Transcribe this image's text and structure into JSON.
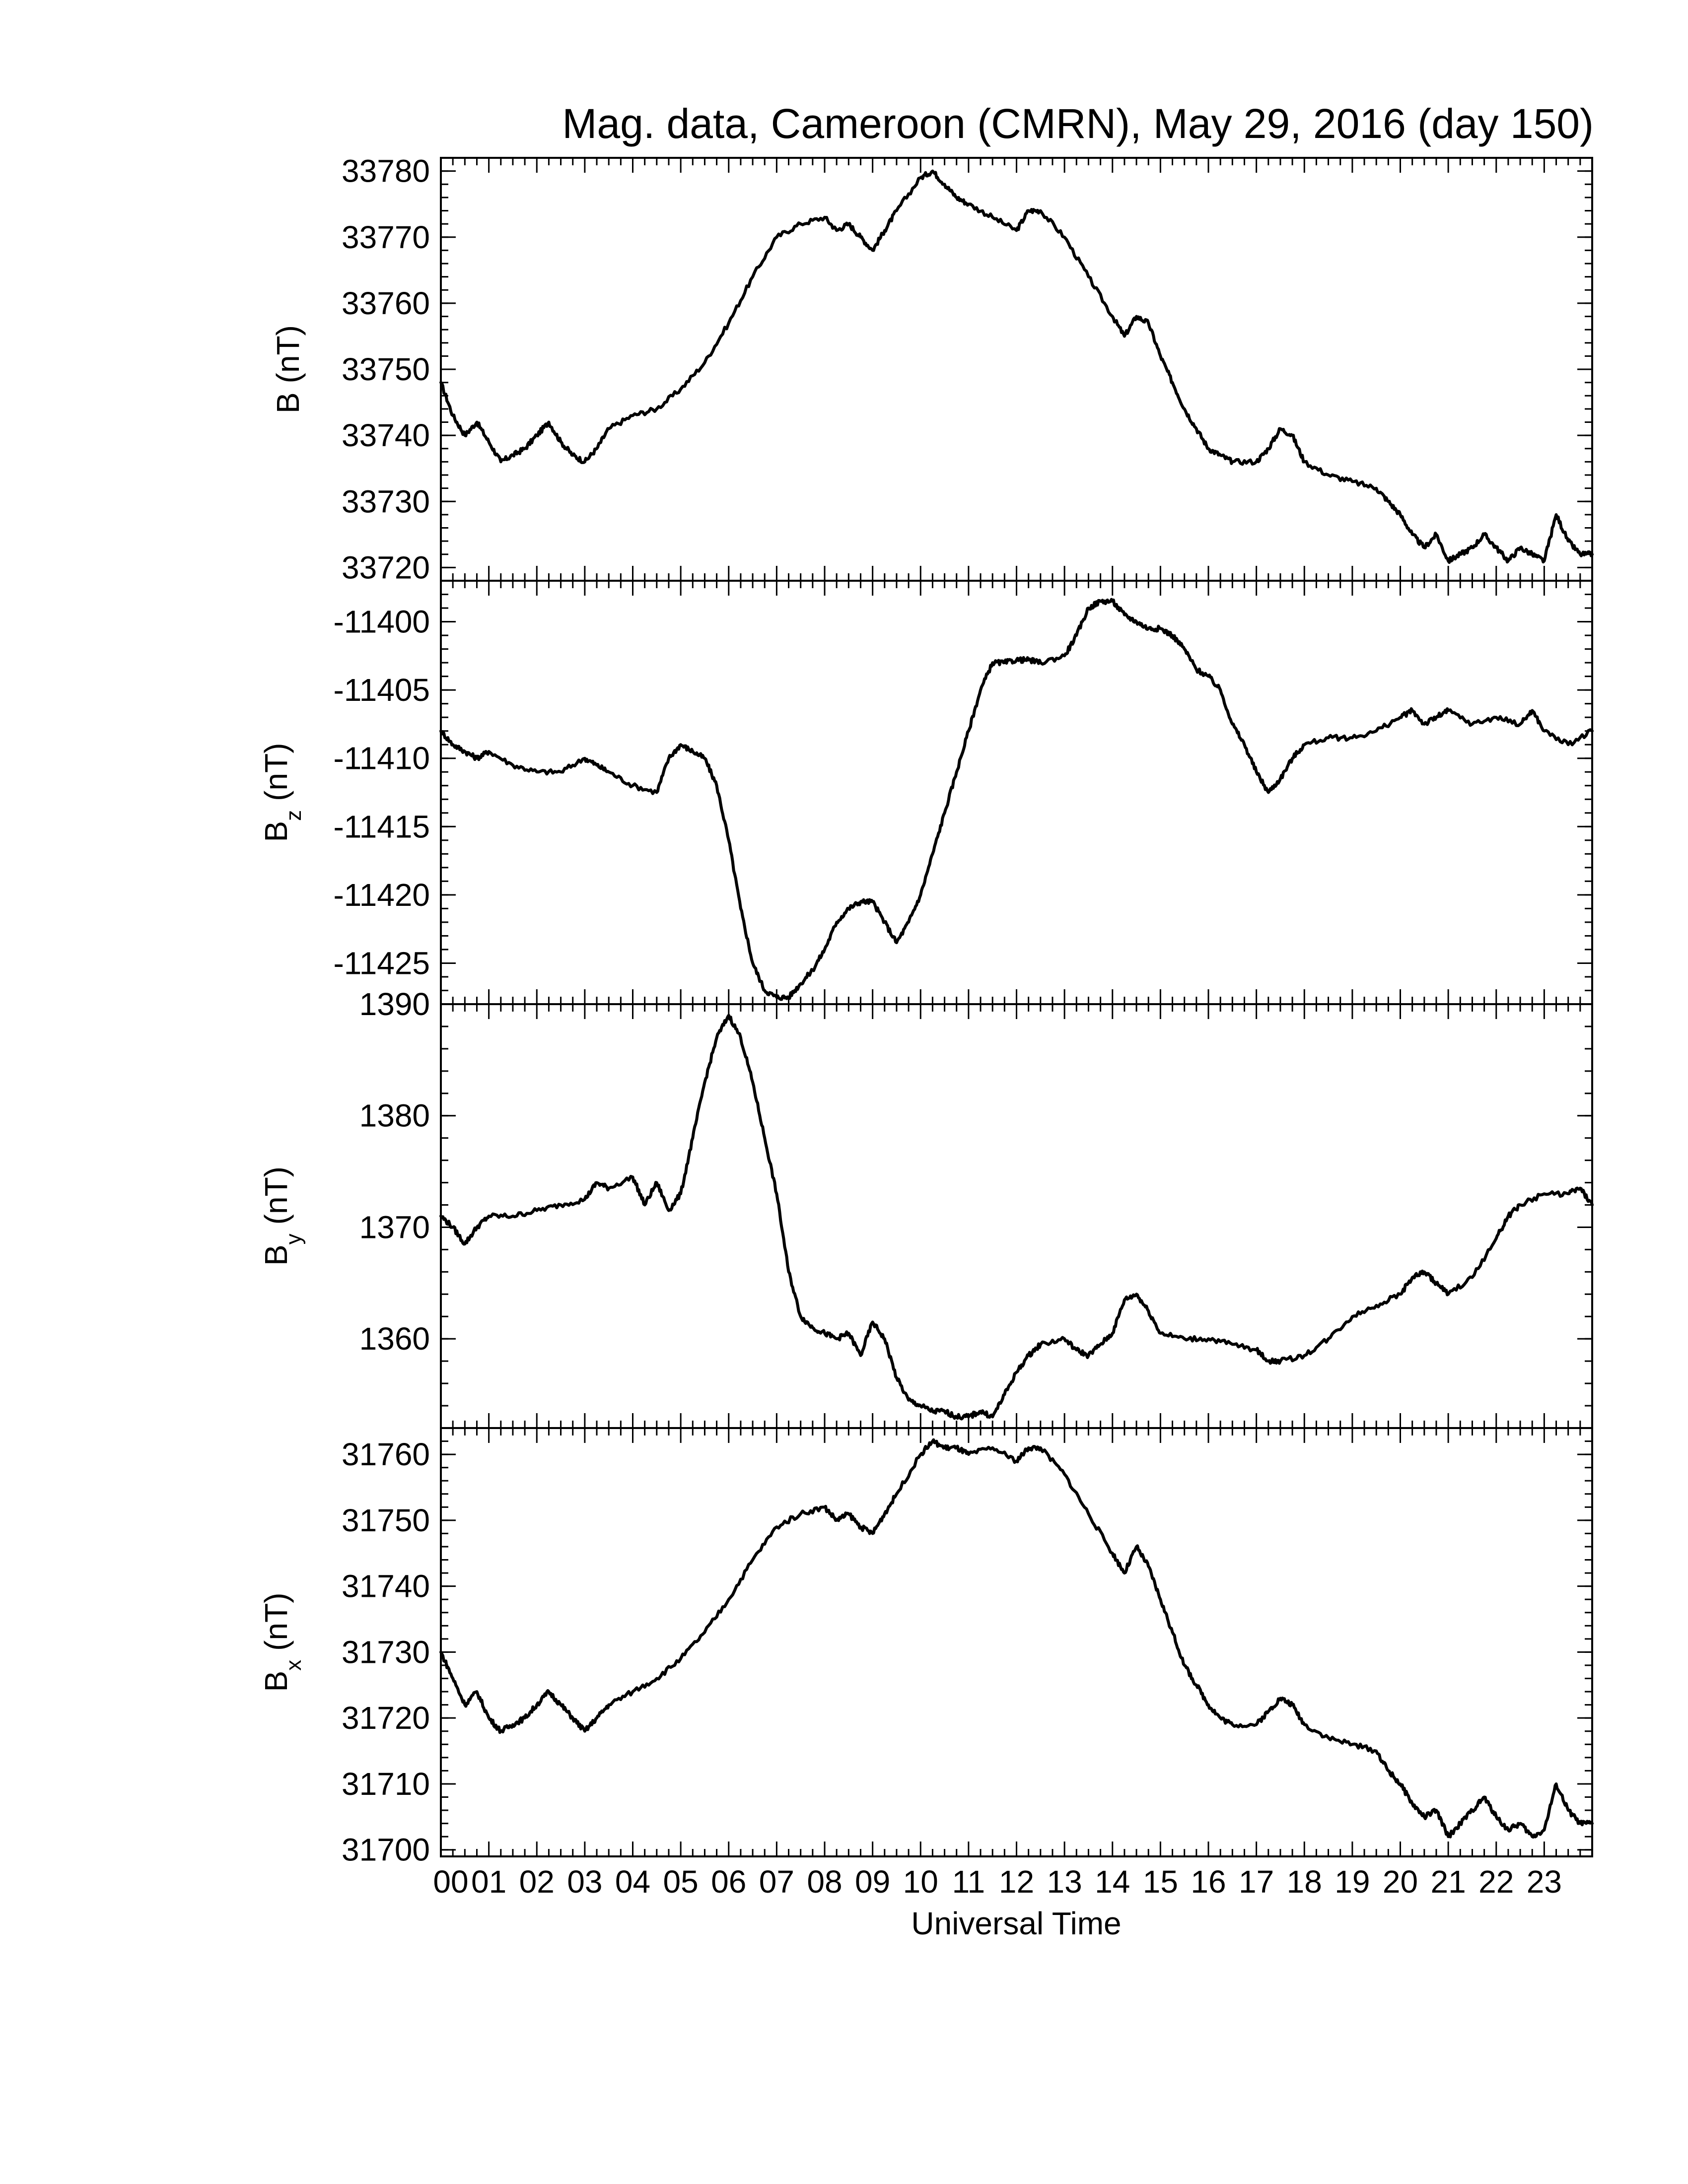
{
  "chart_data": {
    "type": "line",
    "title": "Mag. data, Cameroon (CMRN), May 29, 2016 (day 150)",
    "xlabel": "Universal Time",
    "xlim": [
      0,
      24
    ],
    "x_tick_labels": [
      "00",
      "01",
      "02",
      "03",
      "04",
      "05",
      "06",
      "07",
      "08",
      "09",
      "10",
      "11",
      "12",
      "13",
      "14",
      "15",
      "16",
      "17",
      "18",
      "19",
      "20",
      "21",
      "22",
      "23"
    ],
    "panels": [
      {
        "id": "B",
        "ylabel_main": "B",
        "ylabel_sub": "",
        "ylabel_unit": "(nT)",
        "ylim": [
          33718,
          33782
        ],
        "yticks": [
          33720,
          33730,
          33740,
          33750,
          33760,
          33770,
          33780
        ],
        "ytick_labels": [
          "33720",
          "33730",
          "33740",
          "33750",
          "33760",
          "33770",
          "33780"
        ],
        "x": [
          0,
          0.25,
          0.5,
          0.75,
          1.0,
          1.25,
          1.5,
          1.75,
          2.0,
          2.25,
          2.5,
          2.75,
          3.0,
          3.25,
          3.5,
          4.0,
          4.5,
          5.0,
          5.5,
          6.0,
          6.5,
          7.0,
          7.5,
          8.0,
          8.25,
          8.5,
          8.75,
          9.0,
          9.25,
          9.5,
          10.0,
          10.25,
          10.5,
          10.75,
          11.0,
          11.5,
          12.0,
          12.25,
          12.5,
          13.0,
          13.5,
          14.0,
          14.25,
          14.5,
          14.75,
          15.0,
          15.25,
          15.5,
          15.75,
          16.0,
          16.25,
          16.5,
          17.0,
          17.25,
          17.5,
          17.75,
          18.0,
          18.5,
          19.0,
          19.5,
          19.75,
          20.0,
          20.25,
          20.5,
          20.75,
          21.0,
          21.25,
          21.5,
          21.75,
          22.0,
          22.25,
          22.5,
          22.75,
          23.0,
          23.25,
          23.5,
          23.75,
          24.0
        ],
        "values": [
          33748,
          33743,
          33740,
          33742,
          33739,
          33736,
          33737,
          33738,
          33740,
          33742,
          33739,
          33737,
          33736,
          33738,
          33741,
          33743,
          33744,
          33747,
          33751,
          33757,
          33764,
          33770,
          33772,
          33773,
          33771,
          33772,
          33770,
          33768,
          33771,
          33774,
          33779,
          33780,
          33778,
          33776,
          33775,
          33773,
          33771,
          33774,
          33774,
          33770,
          33764,
          33758,
          33755,
          33758,
          33757,
          33752,
          33748,
          33744,
          33741,
          33738,
          33737,
          33736,
          33736,
          33738,
          33741,
          33740,
          33736,
          33734,
          33733,
          33732,
          33730,
          33728,
          33725,
          33723,
          33725,
          33721,
          33722,
          33723,
          33725,
          33723,
          33721,
          33723,
          33722,
          33721,
          33728,
          33724,
          33722,
          33722
        ]
      },
      {
        "id": "Bz",
        "ylabel_main": "B",
        "ylabel_sub": "z",
        "ylabel_unit": "(nT)",
        "ylim": [
          -11428,
          -11397
        ],
        "yticks": [
          -11425,
          -11420,
          -11415,
          -11410,
          -11405,
          -11400
        ],
        "ytick_labels": [
          "-11425",
          "-11420",
          "-11415",
          "-11410",
          "-11405",
          "-11400"
        ],
        "x": [
          0,
          0.25,
          0.5,
          0.75,
          1.0,
          1.5,
          2.0,
          2.5,
          3.0,
          3.25,
          3.5,
          4.0,
          4.5,
          4.75,
          5.0,
          5.25,
          5.5,
          5.75,
          6.0,
          6.25,
          6.5,
          6.75,
          7.0,
          7.25,
          7.5,
          7.75,
          8.0,
          8.25,
          8.5,
          8.75,
          9.0,
          9.25,
          9.5,
          9.75,
          10.0,
          10.25,
          10.5,
          10.75,
          11.0,
          11.25,
          11.5,
          11.75,
          12.0,
          12.25,
          12.5,
          13.0,
          13.25,
          13.5,
          13.75,
          14.0,
          14.25,
          14.5,
          14.75,
          15.0,
          15.25,
          15.5,
          15.75,
          16.0,
          16.25,
          16.5,
          16.75,
          17.0,
          17.25,
          17.5,
          17.75,
          18.0,
          18.5,
          19.0,
          19.5,
          20.0,
          20.25,
          20.5,
          20.75,
          21.0,
          21.5,
          22.0,
          22.5,
          22.75,
          23.0,
          23.5,
          24.0
        ],
        "values": [
          -11408,
          -11409,
          -11409.5,
          -11410,
          -11409.5,
          -11410.5,
          -11411,
          -11411,
          -11410,
          -11410.5,
          -11411,
          -11412,
          -11412.5,
          -11410,
          -11409,
          -11409.5,
          -11410,
          -11412,
          -11416,
          -11421,
          -11425,
          -11427,
          -11427.5,
          -11427.5,
          -11426.5,
          -11425.5,
          -11424,
          -11422,
          -11421,
          -11420.5,
          -11420.5,
          -11422,
          -11423.5,
          -11422,
          -11420,
          -11417,
          -11414,
          -11411,
          -11408,
          -11405,
          -11403,
          -11403,
          -11402.8,
          -11402.8,
          -11403,
          -11402.5,
          -11401,
          -11399,
          -11398.5,
          -11398.5,
          -11399.5,
          -11400,
          -11400.5,
          -11400.5,
          -11401,
          -11402,
          -11403.5,
          -11404,
          -11405,
          -11407.5,
          -11409,
          -11411,
          -11412.5,
          -11411.5,
          -11410,
          -11409,
          -11408.5,
          -11408.5,
          -11408,
          -11407,
          -11406.5,
          -11407.5,
          -11407,
          -11406.5,
          -11407.5,
          -11407,
          -11407.5,
          -11406.5,
          -11408,
          -11409,
          -11408
        ]
      },
      {
        "id": "By",
        "ylabel_main": "B",
        "ylabel_sub": "y",
        "ylabel_unit": "(nT)",
        "ylim": [
          1352,
          1390
        ],
        "yticks": [
          1360,
          1370,
          1380,
          1390
        ],
        "ytick_labels": [
          "1360",
          "1370",
          "1380",
          "1390"
        ],
        "x": [
          0,
          0.25,
          0.5,
          0.75,
          1.0,
          1.5,
          2.0,
          2.5,
          3.0,
          3.25,
          3.5,
          4.0,
          4.25,
          4.5,
          4.75,
          5.0,
          5.25,
          5.5,
          5.75,
          6.0,
          6.25,
          6.5,
          6.75,
          7.0,
          7.25,
          7.5,
          7.75,
          8.0,
          8.25,
          8.5,
          8.75,
          9.0,
          9.25,
          9.5,
          9.75,
          10.0,
          10.25,
          10.5,
          10.75,
          11.0,
          11.25,
          11.5,
          11.75,
          12.0,
          12.25,
          12.5,
          13.0,
          13.25,
          13.5,
          13.75,
          14.0,
          14.25,
          14.5,
          14.75,
          15.0,
          15.5,
          16.0,
          16.5,
          17.0,
          17.25,
          17.5,
          18.0,
          18.5,
          19.0,
          19.5,
          20.0,
          20.25,
          20.5,
          20.75,
          21.0,
          21.5,
          22.0,
          22.25,
          22.5,
          23.0,
          23.5,
          23.75,
          24.0
        ],
        "values": [
          1371,
          1370,
          1368.5,
          1370,
          1371,
          1371,
          1371.5,
          1372,
          1372.5,
          1374,
          1373.5,
          1374.5,
          1372,
          1374,
          1371.5,
          1373,
          1378,
          1383,
          1387,
          1389,
          1387,
          1383,
          1378,
          1373,
          1366,
          1362,
          1361,
          1360.5,
          1360,
          1360.5,
          1358.5,
          1361.5,
          1360,
          1356.5,
          1354.5,
          1354,
          1353.5,
          1353.5,
          1353,
          1353,
          1353.5,
          1353,
          1355,
          1357,
          1358.5,
          1359.5,
          1360,
          1359,
          1358.5,
          1359.5,
          1360.5,
          1363.5,
          1364,
          1362.5,
          1360.5,
          1360,
          1360,
          1359.5,
          1359,
          1358,
          1358,
          1358.5,
          1360,
          1362,
          1363,
          1364,
          1365.5,
          1366,
          1365,
          1364,
          1365.5,
          1369,
          1371,
          1372,
          1373,
          1373,
          1373.5,
          1372
        ]
      },
      {
        "id": "Bx",
        "ylabel_main": "B",
        "ylabel_sub": "x",
        "ylabel_unit": "(nT)",
        "ylim": [
          31699,
          31764
        ],
        "yticks": [
          31700,
          31710,
          31720,
          31730,
          31740,
          31750,
          31760
        ],
        "ytick_labels": [
          "31700",
          "31710",
          "31720",
          "31730",
          "31740",
          "31750",
          "31760"
        ],
        "x": [
          0,
          0.25,
          0.5,
          0.75,
          1.0,
          1.25,
          1.5,
          1.75,
          2.0,
          2.25,
          2.5,
          2.75,
          3.0,
          3.25,
          3.5,
          4.0,
          4.5,
          5.0,
          5.5,
          6.0,
          6.5,
          7.0,
          7.5,
          8.0,
          8.25,
          8.5,
          8.75,
          9.0,
          9.25,
          9.5,
          10.0,
          10.25,
          10.5,
          10.75,
          11.0,
          11.5,
          12.0,
          12.25,
          12.5,
          13.0,
          13.5,
          14.0,
          14.25,
          14.5,
          14.75,
          15.0,
          15.25,
          15.5,
          15.75,
          16.0,
          16.25,
          16.5,
          17.0,
          17.25,
          17.5,
          17.75,
          18.0,
          18.5,
          19.0,
          19.5,
          19.75,
          20.0,
          20.25,
          20.5,
          20.75,
          21.0,
          21.25,
          21.5,
          21.75,
          22.0,
          22.25,
          22.5,
          22.75,
          23.0,
          23.25,
          23.5,
          23.75,
          24.0
        ],
        "values": [
          31730,
          31726,
          31722,
          31724,
          31720,
          31718,
          31719,
          31720,
          31722,
          31724,
          31722,
          31720,
          31718,
          31720,
          31722,
          31724,
          31726,
          31729,
          31733,
          31738,
          31744,
          31749,
          31751,
          31752,
          31750,
          31751,
          31749,
          31748,
          31751,
          31754,
          31760,
          31762,
          31761,
          31761,
          31760,
          31761,
          31759,
          31761,
          31761,
          31757,
          31751,
          31745,
          31742,
          31746,
          31743,
          31738,
          31733,
          31728,
          31725,
          31722,
          31720,
          31719,
          31719,
          31721,
          31723,
          31722,
          31719,
          31717,
          31716,
          31715,
          31712,
          31710,
          31707,
          31705,
          31706,
          31702,
          31704,
          31706,
          31708,
          31705,
          31703,
          31704,
          31702,
          31703,
          31710,
          31706,
          31704,
          31704
        ]
      }
    ]
  }
}
